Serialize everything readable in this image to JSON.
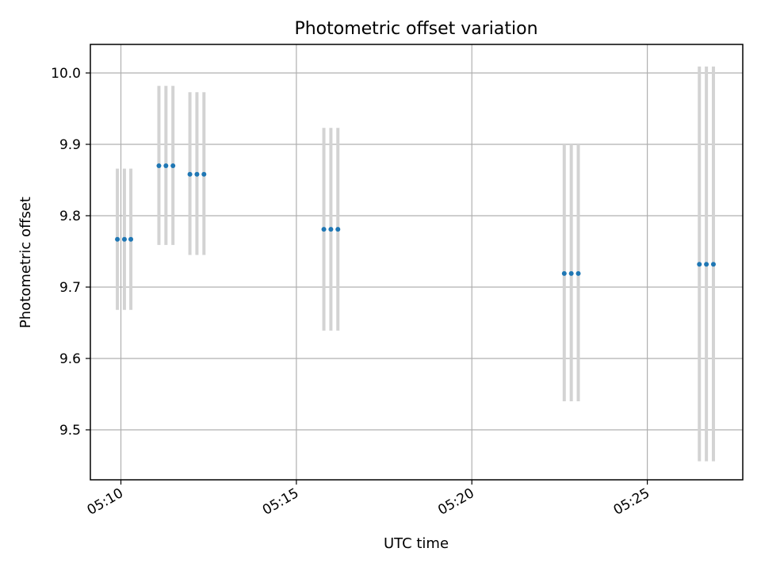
{
  "chart_data": {
    "type": "scatter",
    "title": "Photometric offset variation",
    "xlabel": "UTC time",
    "ylabel": "Photometric offset",
    "x_tick_labels": [
      "05:10",
      "05:15",
      "05:20",
      "05:25"
    ],
    "x_ticks_minutes": [
      10,
      15,
      20,
      25
    ],
    "y_ticks": [
      9.5,
      9.6,
      9.7,
      9.8,
      9.9,
      10.0
    ],
    "y_tick_labels": [
      "9.5",
      "9.6",
      "9.7",
      "9.8",
      "9.9",
      "10.0"
    ],
    "xlim_minutes": [
      9.13,
      27.72
    ],
    "ylim": [
      9.43,
      10.04
    ],
    "grid": true,
    "series": [
      {
        "points": [
          {
            "x": "05:09:54",
            "y": 9.767,
            "lo": 9.668,
            "hi": 9.866
          },
          {
            "x": "05:10:06",
            "y": 9.767,
            "lo": 9.668,
            "hi": 9.866
          },
          {
            "x": "05:10:17",
            "y": 9.767,
            "lo": 9.668,
            "hi": 9.866
          },
          {
            "x": "05:11:05",
            "y": 9.87,
            "lo": 9.759,
            "hi": 9.982
          },
          {
            "x": "05:11:17",
            "y": 9.87,
            "lo": 9.759,
            "hi": 9.982
          },
          {
            "x": "05:11:29",
            "y": 9.87,
            "lo": 9.759,
            "hi": 9.982
          },
          {
            "x": "05:11:58",
            "y": 9.858,
            "lo": 9.745,
            "hi": 9.973
          },
          {
            "x": "05:12:10",
            "y": 9.858,
            "lo": 9.745,
            "hi": 9.973
          },
          {
            "x": "05:12:22",
            "y": 9.858,
            "lo": 9.745,
            "hi": 9.973
          },
          {
            "x": "05:15:47",
            "y": 9.781,
            "lo": 9.639,
            "hi": 9.923
          },
          {
            "x": "05:15:59",
            "y": 9.781,
            "lo": 9.639,
            "hi": 9.923
          },
          {
            "x": "05:16:11",
            "y": 9.781,
            "lo": 9.639,
            "hi": 9.923
          },
          {
            "x": "05:22:38",
            "y": 9.719,
            "lo": 9.54,
            "hi": 9.9
          },
          {
            "x": "05:22:50",
            "y": 9.719,
            "lo": 9.54,
            "hi": 9.9
          },
          {
            "x": "05:23:02",
            "y": 9.719,
            "lo": 9.54,
            "hi": 9.9
          },
          {
            "x": "05:26:29",
            "y": 9.732,
            "lo": 9.456,
            "hi": 10.009
          },
          {
            "x": "05:26:41",
            "y": 9.732,
            "lo": 9.456,
            "hi": 10.009
          },
          {
            "x": "05:26:53",
            "y": 9.732,
            "lo": 9.456,
            "hi": 10.009
          }
        ]
      }
    ],
    "colors": {
      "point": "#1f77b4",
      "errorbar": "#d3d3d3",
      "grid": "#b0b0b0"
    }
  }
}
